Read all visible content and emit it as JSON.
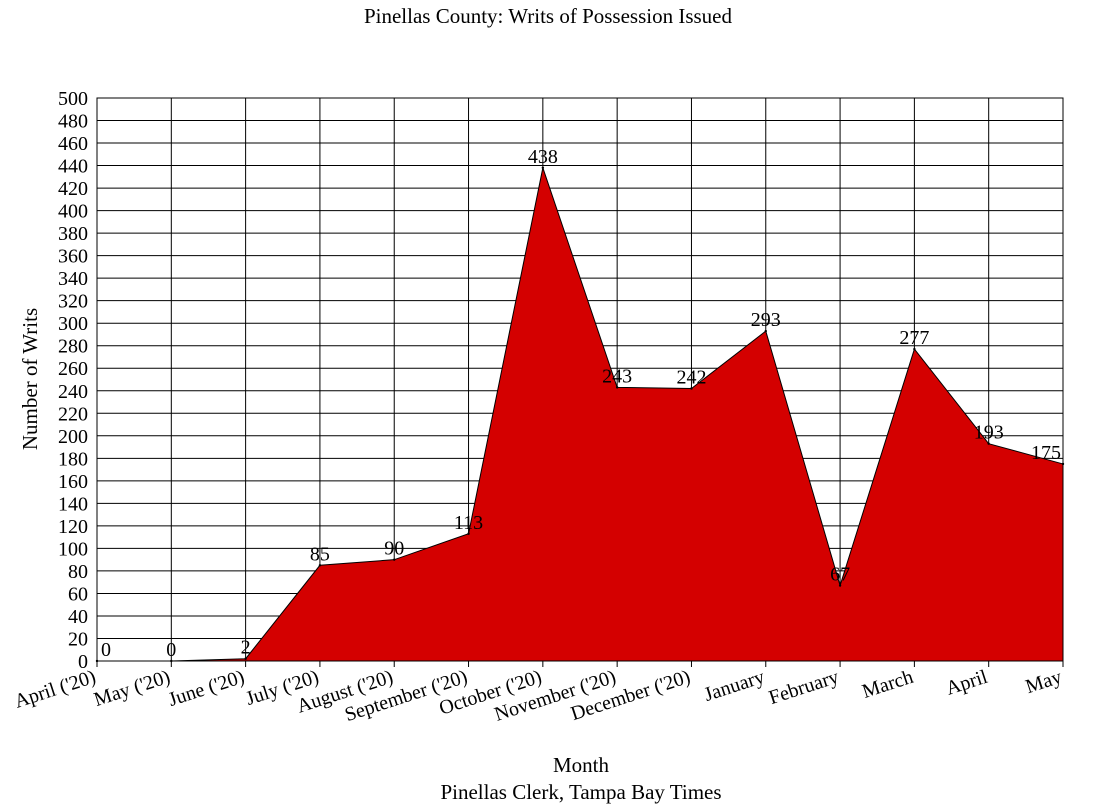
{
  "chart_data": {
    "type": "area",
    "title": "Pinellas County: Writs of Possession Issued",
    "xlabel": "Month",
    "ylabel": "Number of Writs",
    "source": "Pinellas Clerk, Tampa Bay Times",
    "categories": [
      "April ('20)",
      "May ('20)",
      "June ('20)",
      "July ('20)",
      "August ('20)",
      "September ('20)",
      "October ('20)",
      "November ('20)",
      "December ('20)",
      "January",
      "February",
      "March",
      "April",
      "May"
    ],
    "series": [
      {
        "values": [
          0,
          0,
          2,
          85,
          90,
          113,
          438,
          243,
          242,
          293,
          67,
          277,
          193,
          175
        ]
      }
    ],
    "ylim": [
      0,
      500
    ],
    "ytick_step": 20,
    "grid": true,
    "legend": "none",
    "fill_color": "#d40000",
    "line_color": "#000000"
  }
}
